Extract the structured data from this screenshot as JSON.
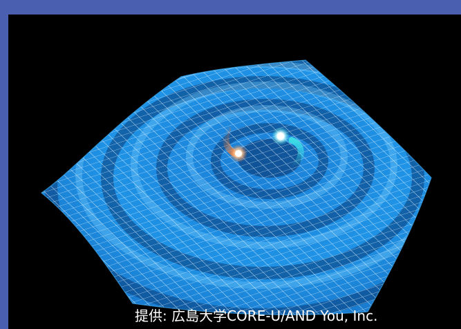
{
  "image": {
    "subject": "simulation-of-gravitational-waves-from-a-binary-star-merger",
    "colors": {
      "border": "#4a5fb0",
      "background": "#000000",
      "sheet": "#1e8fe0",
      "grid": "#e8f6ff",
      "star_orange": "#ff7a2a",
      "star_cyan": "#3fe6e6"
    }
  },
  "credit": {
    "text": "提供: 広島大学CORE-U/AND You, Inc."
  }
}
